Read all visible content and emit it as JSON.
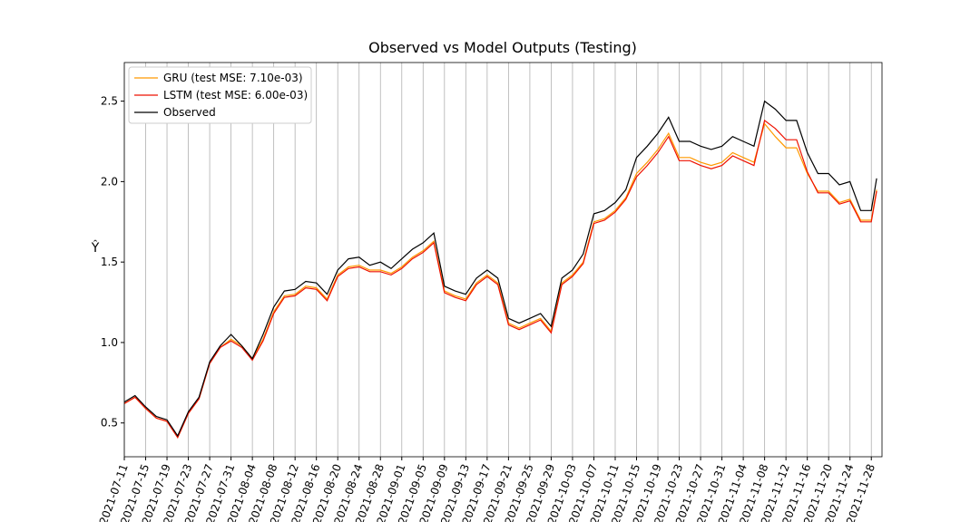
{
  "chart_data": {
    "type": "line",
    "title": "Observed vs Model Outputs (Testing)",
    "y_label": "Ŷ",
    "x": [
      "2021-07-11",
      "2021-07-13",
      "2021-07-15",
      "2021-07-17",
      "2021-07-19",
      "2021-07-21",
      "2021-07-23",
      "2021-07-25",
      "2021-07-27",
      "2021-07-29",
      "2021-07-31",
      "2021-08-02",
      "2021-08-04",
      "2021-08-06",
      "2021-08-08",
      "2021-08-10",
      "2021-08-12",
      "2021-08-14",
      "2021-08-16",
      "2021-08-18",
      "2021-08-20",
      "2021-08-22",
      "2021-08-24",
      "2021-08-26",
      "2021-08-28",
      "2021-08-30",
      "2021-09-01",
      "2021-09-03",
      "2021-09-05",
      "2021-09-07",
      "2021-09-09",
      "2021-09-11",
      "2021-09-13",
      "2021-09-15",
      "2021-09-17",
      "2021-09-19",
      "2021-09-21",
      "2021-09-23",
      "2021-09-25",
      "2021-09-27",
      "2021-09-29",
      "2021-10-01",
      "2021-10-03",
      "2021-10-05",
      "2021-10-07",
      "2021-10-09",
      "2021-10-11",
      "2021-10-13",
      "2021-10-15",
      "2021-10-17",
      "2021-10-19",
      "2021-10-21",
      "2021-10-23",
      "2021-10-25",
      "2021-10-27",
      "2021-10-29",
      "2021-10-31",
      "2021-11-02",
      "2021-11-04",
      "2021-11-06",
      "2021-11-08",
      "2021-11-10",
      "2021-11-12",
      "2021-11-14",
      "2021-11-16",
      "2021-11-18",
      "2021-11-20",
      "2021-11-22",
      "2021-11-24",
      "2021-11-26",
      "2021-11-28",
      "2021-11-29"
    ],
    "series": [
      {
        "name": "GRU (test MSE: 7.10e-03)",
        "color": "#ff9900",
        "values": [
          0.62,
          0.66,
          0.59,
          0.53,
          0.51,
          0.41,
          0.56,
          0.65,
          0.87,
          0.97,
          1.02,
          0.98,
          0.9,
          1.02,
          1.19,
          1.29,
          1.3,
          1.35,
          1.34,
          1.27,
          1.42,
          1.47,
          1.48,
          1.45,
          1.45,
          1.43,
          1.47,
          1.53,
          1.57,
          1.63,
          1.32,
          1.29,
          1.27,
          1.37,
          1.42,
          1.37,
          1.12,
          1.09,
          1.12,
          1.15,
          1.07,
          1.37,
          1.42,
          1.5,
          1.75,
          1.77,
          1.82,
          1.9,
          2.05,
          2.12,
          2.2,
          2.3,
          2.15,
          2.15,
          2.12,
          2.1,
          2.12,
          2.18,
          2.15,
          2.12,
          2.36,
          2.28,
          2.21,
          2.21,
          2.05,
          1.94,
          1.94,
          1.87,
          1.89,
          1.76,
          1.76,
          1.95
        ]
      },
      {
        "name": "LSTM (test MSE: 6.00e-03)",
        "color": "#ee1100",
        "values": [
          0.62,
          0.66,
          0.59,
          0.53,
          0.51,
          0.41,
          0.56,
          0.65,
          0.87,
          0.97,
          1.01,
          0.97,
          0.89,
          1.01,
          1.18,
          1.28,
          1.29,
          1.34,
          1.33,
          1.26,
          1.41,
          1.46,
          1.47,
          1.44,
          1.44,
          1.42,
          1.46,
          1.52,
          1.56,
          1.62,
          1.31,
          1.28,
          1.26,
          1.36,
          1.41,
          1.36,
          1.11,
          1.08,
          1.11,
          1.14,
          1.06,
          1.36,
          1.41,
          1.49,
          1.74,
          1.76,
          1.81,
          1.89,
          2.03,
          2.1,
          2.18,
          2.28,
          2.13,
          2.13,
          2.1,
          2.08,
          2.1,
          2.16,
          2.13,
          2.1,
          2.38,
          2.33,
          2.26,
          2.26,
          2.06,
          1.93,
          1.93,
          1.86,
          1.88,
          1.75,
          1.75,
          1.94
        ]
      },
      {
        "name": "Observed",
        "color": "#000000",
        "values": [
          0.63,
          0.67,
          0.6,
          0.54,
          0.52,
          0.42,
          0.57,
          0.66,
          0.88,
          0.98,
          1.05,
          0.98,
          0.9,
          1.05,
          1.22,
          1.32,
          1.33,
          1.38,
          1.37,
          1.3,
          1.45,
          1.52,
          1.53,
          1.48,
          1.5,
          1.46,
          1.52,
          1.58,
          1.62,
          1.68,
          1.35,
          1.32,
          1.3,
          1.4,
          1.45,
          1.4,
          1.15,
          1.12,
          1.15,
          1.18,
          1.1,
          1.4,
          1.45,
          1.55,
          1.8,
          1.82,
          1.87,
          1.95,
          2.15,
          2.22,
          2.3,
          2.4,
          2.25,
          2.25,
          2.22,
          2.2,
          2.22,
          2.28,
          2.25,
          2.22,
          2.5,
          2.45,
          2.38,
          2.38,
          2.18,
          2.05,
          2.05,
          1.98,
          2.0,
          1.82,
          1.82,
          2.02
        ]
      }
    ],
    "xlim": [
      "2021-07-11",
      "2021-11-30"
    ],
    "xticks": [
      "2021-07-11",
      "2021-07-15",
      "2021-07-19",
      "2021-07-23",
      "2021-07-27",
      "2021-07-31",
      "2021-08-04",
      "2021-08-08",
      "2021-08-12",
      "2021-08-16",
      "2021-08-20",
      "2021-08-24",
      "2021-08-28",
      "2021-09-01",
      "2021-09-05",
      "2021-09-09",
      "2021-09-13",
      "2021-09-17",
      "2021-09-21",
      "2021-09-25",
      "2021-09-29",
      "2021-10-03",
      "2021-10-07",
      "2021-10-11",
      "2021-10-15",
      "2021-10-19",
      "2021-10-23",
      "2021-10-27",
      "2021-10-31",
      "2021-11-04",
      "2021-11-08",
      "2021-11-12",
      "2021-11-16",
      "2021-11-20",
      "2021-11-24",
      "2021-11-28"
    ],
    "ylim": [
      0.29,
      2.74
    ],
    "yticks": [
      {
        "value": 0.5,
        "label": "0.5"
      },
      {
        "value": 1.0,
        "label": "1.0"
      },
      {
        "value": 1.5,
        "label": "1.5"
      },
      {
        "value": 2.0,
        "label": "2.0"
      },
      {
        "value": 2.5,
        "label": "2.5"
      }
    ],
    "grid": "x",
    "legend": "upper-left"
  }
}
